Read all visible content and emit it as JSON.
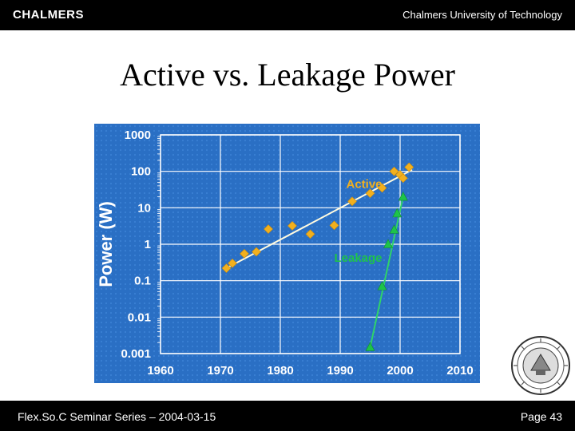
{
  "header": {
    "logo_text": "CHALMERS",
    "institution": "Chalmers University of Technology"
  },
  "slide": {
    "title": "Active vs. Leakage Power"
  },
  "footer": {
    "left_text": "Flex.So.C Seminar Series – 2004-03-15",
    "page_label": "Page 43"
  },
  "colors": {
    "chart_background": "#2a6fc4",
    "active_series": "#f2b01e",
    "leakage_series": "#1ec34a",
    "active_trend": "#fffbe0",
    "leakage_trend": "#2fd36a",
    "axis_text": "#ffffff"
  },
  "chart_data": {
    "type": "scatter",
    "title": "",
    "xlabel": "",
    "ylabel": "Power (W)",
    "xlim": [
      1960,
      2010
    ],
    "ylim": [
      0.001,
      1000
    ],
    "yscale": "log",
    "grid": true,
    "x_ticks": [
      "1960",
      "1970",
      "1980",
      "1990",
      "2000",
      "2010"
    ],
    "y_ticks": [
      "1000",
      "100",
      "10",
      "1",
      "0.1",
      "0.01",
      "0.001"
    ],
    "series": [
      {
        "name": "Active",
        "marker": "diamond",
        "points": [
          [
            1971,
            0.22
          ],
          [
            1972,
            0.3
          ],
          [
            1974,
            0.55
          ],
          [
            1976,
            0.62
          ],
          [
            1978,
            2.6
          ],
          [
            1982,
            3.2
          ],
          [
            1985,
            1.9
          ],
          [
            1989,
            3.3
          ],
          [
            1992,
            15
          ],
          [
            1995,
            25
          ],
          [
            1997,
            35
          ],
          [
            1999,
            100
          ],
          [
            2000,
            80
          ],
          [
            2000.5,
            65
          ],
          [
            2001.5,
            130
          ]
        ],
        "trend": [
          [
            1971,
            0.22
          ],
          [
            2002,
            110
          ]
        ]
      },
      {
        "name": "Leakage",
        "marker": "triangle",
        "points": [
          [
            1995,
            0.0015
          ],
          [
            1997,
            0.07
          ],
          [
            1998,
            1.0
          ],
          [
            1999,
            2.5
          ],
          [
            1999.5,
            7
          ],
          [
            2000.5,
            20
          ]
        ],
        "trend": [
          [
            1995,
            0.0015
          ],
          [
            2000.5,
            20
          ]
        ]
      }
    ],
    "annotations": [
      {
        "text": "Active",
        "x": 1994,
        "y": 35
      },
      {
        "text": "Leakage",
        "x": 1993,
        "y": 0.33
      }
    ]
  }
}
